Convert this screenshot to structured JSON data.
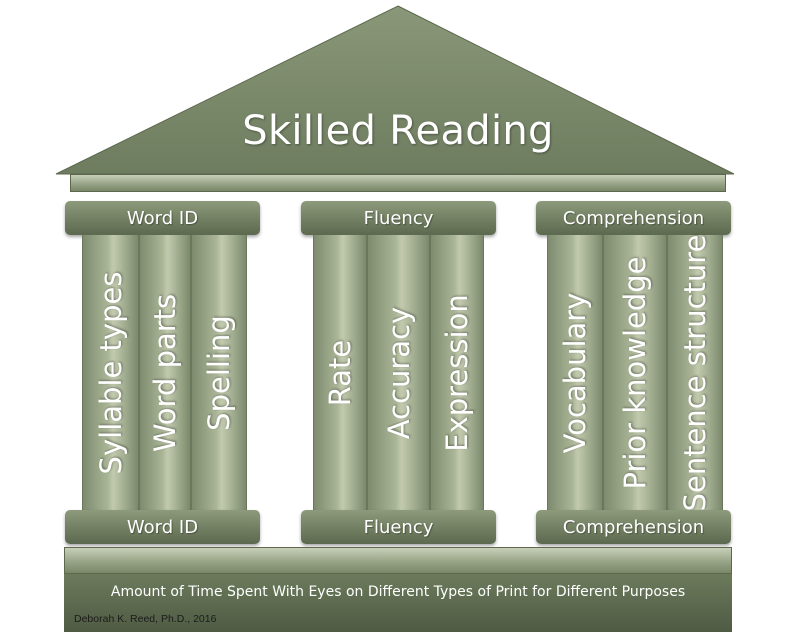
{
  "roof": {
    "title": "Skilled Reading"
  },
  "pillars": [
    {
      "top_label": "Word ID",
      "bottom_label": "Word ID",
      "columns": [
        "Syllable types",
        "Word parts",
        "Spelling"
      ]
    },
    {
      "top_label": "Fluency",
      "bottom_label": "Fluency",
      "columns": [
        "Rate",
        "Accuracy",
        "Expression"
      ]
    },
    {
      "top_label": "Comprehension",
      "bottom_label": "Comprehension",
      "columns": [
        "Vocabulary",
        "Prior knowledge",
        "Sentence structure"
      ]
    }
  ],
  "foundation": {
    "text": "Amount of Time Spent With Eyes on Different Types of Print for Different Purposes",
    "credit": "Deborah K. Reed, Ph.D., 2016"
  },
  "colors": {
    "roof": "#79876a",
    "pillar": "#9aa687",
    "base": "#5e6b4f",
    "text": "#ffffff"
  }
}
